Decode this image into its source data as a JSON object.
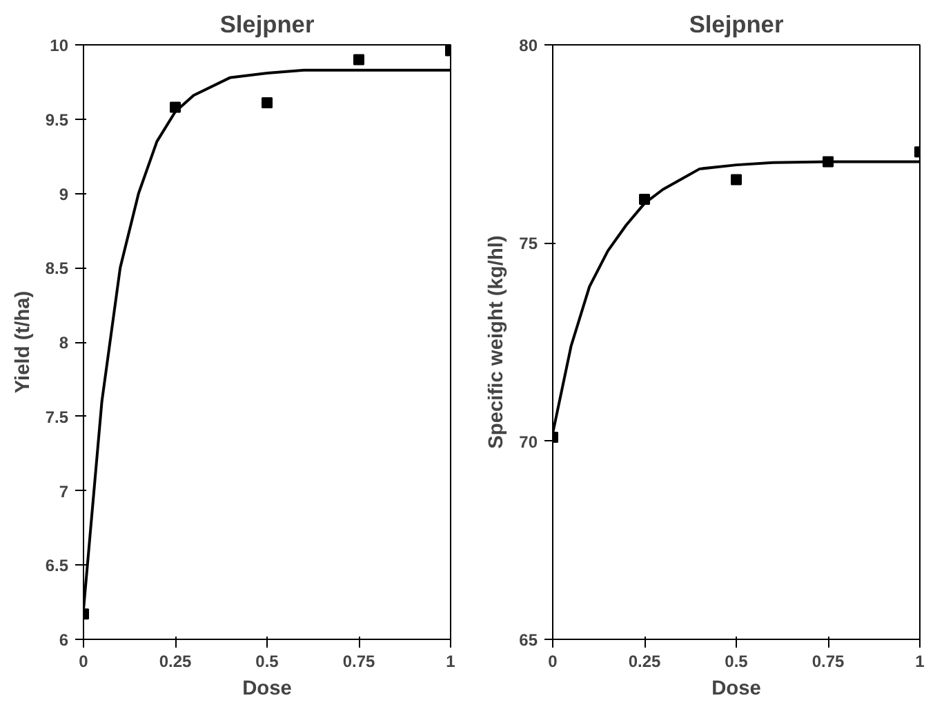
{
  "chart_data": [
    {
      "type": "line",
      "title": "Slejpner",
      "xlabel": "Dose",
      "ylabel": "Yield (t/ha)",
      "xlim": [
        0,
        1
      ],
      "xticks": [
        0,
        0.25,
        0.5,
        0.75,
        1
      ],
      "ylim": [
        6,
        10
      ],
      "yticks": [
        6,
        6.5,
        7,
        7.5,
        8,
        8.5,
        9,
        9.5,
        10
      ],
      "grid": false,
      "series": [
        {
          "type": "scatter",
          "marker": "square",
          "color": "#000000",
          "x": [
            0,
            0.25,
            0.5,
            0.75,
            1
          ],
          "values": [
            6.17,
            9.58,
            9.61,
            9.9,
            9.96
          ]
        },
        {
          "color": "#000000",
          "line_style": "solid",
          "x": [
            0,
            0.05,
            0.1,
            0.15,
            0.2,
            0.25,
            0.3,
            0.4,
            0.5,
            0.6,
            0.75,
            1
          ],
          "values": [
            6.2,
            7.6,
            8.5,
            9.0,
            9.35,
            9.55,
            9.66,
            9.78,
            9.81,
            9.83,
            9.83,
            9.83
          ]
        }
      ]
    },
    {
      "type": "line",
      "title": "Slejpner",
      "xlabel": "Dose",
      "ylabel": "Specific weight (kg/hl)",
      "xlim": [
        0,
        1
      ],
      "xticks": [
        0,
        0.25,
        0.5,
        0.75,
        1
      ],
      "ylim": [
        65,
        80
      ],
      "yticks": [
        65,
        70,
        75,
        80
      ],
      "grid": false,
      "series": [
        {
          "type": "scatter",
          "marker": "square",
          "color": "#000000",
          "x": [
            0,
            0.25,
            0.5,
            0.75,
            1
          ],
          "values": [
            70.1,
            76.1,
            76.6,
            77.05,
            77.3
          ]
        },
        {
          "color": "#000000",
          "line_style": "solid",
          "x": [
            0,
            0.05,
            0.1,
            0.15,
            0.2,
            0.25,
            0.3,
            0.4,
            0.5,
            0.6,
            0.75,
            1
          ],
          "values": [
            70.2,
            72.4,
            73.9,
            74.8,
            75.45,
            76.0,
            76.35,
            76.87,
            76.97,
            77.03,
            77.05,
            77.05
          ]
        }
      ]
    }
  ]
}
